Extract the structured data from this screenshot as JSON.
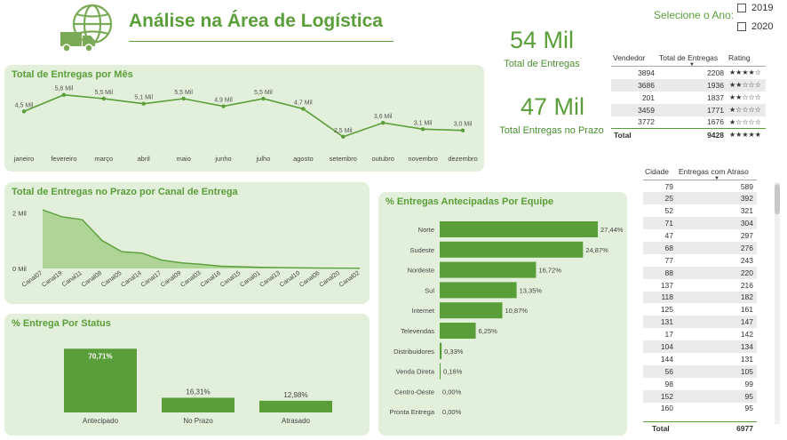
{
  "header": {
    "title": "Análise na Área de Logística",
    "year_slicer": {
      "label": "Selecione o Ano:",
      "options": [
        "2019",
        "2020"
      ]
    }
  },
  "kpis": {
    "total_entregas": {
      "value": "54 Mil",
      "label": "Total de Entregas"
    },
    "entregas_prazo": {
      "value": "47 Mil",
      "label": "Total Entregas no Prazo"
    }
  },
  "vendor_table": {
    "headers": [
      "Vendedor",
      "Total de Entregas",
      "Rating"
    ],
    "rows": [
      {
        "vendedor": "3894",
        "total": "2208",
        "rating": "★★★★☆"
      },
      {
        "vendedor": "3686",
        "total": "1936",
        "rating": "★★☆☆☆"
      },
      {
        "vendedor": "201",
        "total": "1837",
        "rating": "★★☆☆☆"
      },
      {
        "vendedor": "3459",
        "total": "1771",
        "rating": "★☆☆☆☆"
      },
      {
        "vendedor": "3772",
        "total": "1676",
        "rating": "★☆☆☆☆"
      }
    ],
    "total": {
      "label": "Total",
      "value": "9428",
      "rating": "★★★★★"
    }
  },
  "city_table": {
    "headers": [
      "Cidade",
      "Entregas com Atraso"
    ],
    "rows": [
      [
        "79",
        "589"
      ],
      [
        "25",
        "392"
      ],
      [
        "52",
        "321"
      ],
      [
        "71",
        "304"
      ],
      [
        "47",
        "297"
      ],
      [
        "68",
        "276"
      ],
      [
        "77",
        "243"
      ],
      [
        "88",
        "220"
      ],
      [
        "137",
        "216"
      ],
      [
        "118",
        "182"
      ],
      [
        "125",
        "161"
      ],
      [
        "131",
        "147"
      ],
      [
        "17",
        "142"
      ],
      [
        "104",
        "134"
      ],
      [
        "144",
        "131"
      ],
      [
        "56",
        "105"
      ],
      [
        "98",
        "99"
      ],
      [
        "152",
        "95"
      ],
      [
        "160",
        "95"
      ]
    ],
    "total": {
      "label": "Total",
      "value": "6977"
    }
  },
  "panels": {
    "monthly": "Total de Entregas por Mês",
    "channel": "Total de Entregas no Prazo por Canal de Entrega",
    "status": "% Entrega Por Status",
    "team": "% Entregas Antecipadas Por Equipe"
  },
  "colors": {
    "accent": "#5a9e39",
    "panel_bg": "#e2efda",
    "area_fill": "#a9d18e"
  },
  "icons": {
    "logo": "globe-truck-icon"
  },
  "chart_data": [
    {
      "id": "monthly",
      "type": "line",
      "title": "Total de Entregas por Mês",
      "categories": [
        "janeiro",
        "fevereiro",
        "março",
        "abril",
        "maio",
        "junho",
        "julho",
        "agosto",
        "setembro",
        "outubro",
        "novembro",
        "dezembro"
      ],
      "values": [
        4.5,
        5.8,
        5.5,
        5.1,
        5.5,
        4.9,
        5.5,
        4.7,
        2.5,
        3.6,
        3.1,
        3.0
      ],
      "labels": [
        "4,5 Mil",
        "5,8 Mil",
        "5,5 Mil",
        "5,1 Mil",
        "5,5 Mil",
        "4,9 Mil",
        "5,5 Mil",
        "4,7 Mil",
        "2,5 Mil",
        "3,6 Mil",
        "3,1 Mil",
        "3,0 Mil"
      ],
      "ylim": [
        2.0,
        6.2
      ]
    },
    {
      "id": "channel",
      "type": "area",
      "title": "Total de Entregas no Prazo por Canal de Entrega",
      "categories": [
        "Canal07",
        "Canal19",
        "Canal11",
        "Canal08",
        "Canal05",
        "Canal14",
        "Canal17",
        "Canal09",
        "Canal03",
        "Canal16",
        "Canal15",
        "Canal01",
        "Canal13",
        "Canal10",
        "Canal06",
        "Canal20",
        "Canal02"
      ],
      "values": [
        2100,
        1850,
        1750,
        1000,
        600,
        550,
        300,
        200,
        150,
        80,
        60,
        40,
        30,
        20,
        15,
        10,
        5
      ],
      "yticks": [
        "2 Mil",
        "0 Mil"
      ],
      "ytick_values": [
        2000,
        0
      ],
      "ylim": [
        0,
        2200
      ]
    },
    {
      "id": "status",
      "type": "bar",
      "title": "% Entrega Por Status",
      "categories": [
        "Antecipado",
        "No Prazo",
        "Atrasado"
      ],
      "values": [
        70.71,
        16.31,
        12.98
      ],
      "labels": [
        "70,71%",
        "16,31%",
        "12,98%"
      ],
      "ylim": [
        0,
        72
      ]
    },
    {
      "id": "team",
      "type": "bar",
      "orientation": "horizontal",
      "title": "% Entregas Antecipadas Por Equipe",
      "categories": [
        "Norte",
        "Sudeste",
        "Nordeste",
        "Sul",
        "Internet",
        "Televendas",
        "Distribuidores",
        "Venda Direta",
        "Centro-Oeste",
        "Pronta Entrega"
      ],
      "values": [
        27.44,
        24.87,
        16.72,
        13.35,
        10.87,
        6.25,
        0.33,
        0.16,
        0.0,
        0.0
      ],
      "labels": [
        "27,44%",
        "24,87%",
        "16,72%",
        "13,35%",
        "10,87%",
        "6,25%",
        "0,33%",
        "0,16%",
        "0,00%",
        "0,00%"
      ],
      "xlim": [
        0,
        27.44
      ]
    }
  ]
}
